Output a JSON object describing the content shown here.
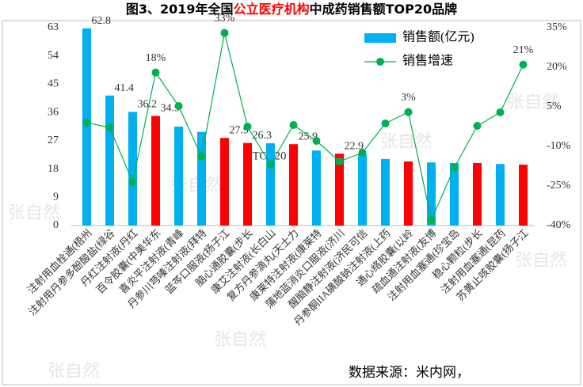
{
  "title": [
    "图3、2019年全国",
    "公立医疗机构",
    "中成药销售额TOP20品牌"
  ],
  "title_highlight_color": "#ff0000",
  "watermark": "张自然",
  "source": "数据来源：米内网，",
  "chart_data": {
    "type": "bar-line",
    "annotation": "TOP20",
    "categories": [
      "注射用血栓通(梧州",
      "注射用丹参多酚酸盐(绿谷",
      "丹红注射液(丹红",
      "百令胶囊(中美华东",
      "喜炎平注射液(青峰",
      "丹参川芎嗪注射液(拜特",
      "蓝芩口服液(扬子江",
      "脑心通胶囊(步长",
      "康艾注射液(长白山",
      "复方丹参滴丸(天士力",
      "康莱特注射液(康莱特",
      "蒲地蓝消炎口服液(济川",
      "醒脑静注射液(济民可信",
      "丹参酮IIA磺酸钠注射液(上药",
      "通心络胶囊(以岭",
      "疏血通注射液(友博",
      "注射用血塞通(珍宝岛",
      "稳心颗粒(步长",
      "注射用血塞通(昆药",
      "苏黄止咳胶囊(扬子江"
    ],
    "series": [
      {
        "name": "销售额(亿元)",
        "color": "#00b0f0",
        "colors": [
          "#00b0f0",
          "#00b0f0",
          "#00b0f0",
          "#ff0000",
          "#00b0f0",
          "#00b0f0",
          "#ff0000",
          "#ff0000",
          "#00b0f0",
          "#ff0000",
          "#00b0f0",
          "#ff0000",
          "#00b0f0",
          "#00b0f0",
          "#ff0000",
          "#00b0f0",
          "#00b0f0",
          "#ff0000",
          "#00b0f0",
          "#ff0000"
        ],
        "values": [
          62.8,
          41.4,
          36.2,
          34.9,
          31.5,
          29.8,
          27.9,
          26.3,
          26.2,
          25.9,
          23.9,
          22.9,
          22.7,
          21.2,
          20.4,
          20.1,
          19.9,
          19.9,
          19.6,
          19.4
        ],
        "value_labels": [
          "62.8",
          "41.4",
          "36.2",
          "34.9",
          null,
          null,
          "27.9",
          "26.3",
          null,
          "25.9",
          null,
          "22.9",
          null,
          null,
          null,
          null,
          null,
          null,
          null,
          null
        ]
      },
      {
        "name": "销售增速",
        "color": "#00b050",
        "axis": "y2",
        "values": [
          -1,
          -2.8,
          -23.5,
          18,
          5.3,
          -13.9,
          33,
          -2.5,
          -16.9,
          -1.9,
          -7.9,
          -15.7,
          -12.4,
          -1.3,
          3,
          -37.9,
          -18.1,
          -2.2,
          2.9,
          21
        ],
        "value_labels": [
          null,
          null,
          null,
          "18%",
          null,
          null,
          "33%",
          null,
          null,
          null,
          null,
          null,
          null,
          null,
          "3%",
          null,
          null,
          null,
          null,
          "21%"
        ]
      }
    ],
    "ylim": [
      0,
      63
    ],
    "yticks": [
      0,
      9,
      18,
      27,
      36,
      45,
      54,
      63
    ],
    "y2lim": [
      -40,
      35
    ],
    "y2ticks": [
      {
        "value": -40,
        "label": "-40%"
      },
      {
        "value": -25,
        "label": "-25%"
      },
      {
        "value": -10,
        "label": "-10%"
      },
      {
        "value": 5,
        "label": "5%"
      },
      {
        "value": 20,
        "label": "20%"
      },
      {
        "value": 35,
        "label": "35%"
      }
    ]
  }
}
